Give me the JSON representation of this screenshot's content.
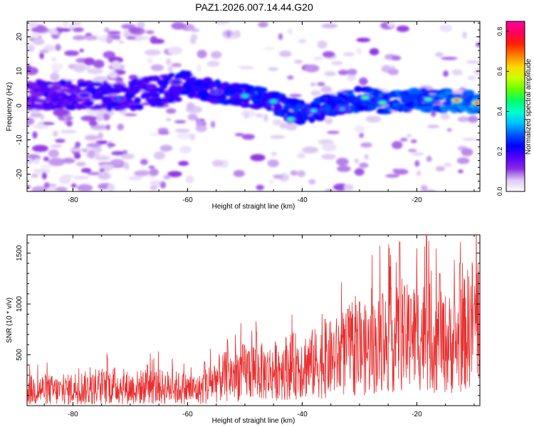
{
  "chart_data": [
    {
      "id": "spectrogram",
      "type": "heatmap",
      "title": "PAZ1.2026.007.14.44.G20",
      "xlabel": "Height of straight line (km)",
      "ylabel": "Frequency (Hz)",
      "xlim": [
        -88,
        -9
      ],
      "ylim": [
        -25,
        24.5
      ],
      "xticks": [
        -80,
        -60,
        -40,
        -20
      ],
      "yticks": [
        20,
        10,
        0,
        -10,
        -20
      ],
      "ridge": [
        [
          -88,
          3
        ],
        [
          -70,
          3
        ],
        [
          -60,
          6
        ],
        [
          -55,
          4
        ],
        [
          -50,
          3
        ],
        [
          -45,
          1
        ],
        [
          -40,
          -2
        ],
        [
          -35,
          0
        ],
        [
          -30,
          2
        ],
        [
          -25,
          1
        ],
        [
          -20,
          1.5
        ],
        [
          -15,
          1.5
        ],
        [
          -9,
          1
        ]
      ],
      "hotspots": [
        {
          "x": -13,
          "y": 1.5,
          "value": 0.82
        },
        {
          "x": -9.5,
          "y": 0.8,
          "value": 0.8
        },
        {
          "x": -18,
          "y": 1.8,
          "value": 0.5
        },
        {
          "x": -26,
          "y": 0.8,
          "value": 0.5
        },
        {
          "x": -29,
          "y": 2.3,
          "value": 0.5
        },
        {
          "x": -42,
          "y": -4,
          "value": 0.48
        },
        {
          "x": -45,
          "y": 1.2,
          "value": 0.45
        },
        {
          "x": -50,
          "y": 2.8,
          "value": 0.45
        },
        {
          "x": -38,
          "y": -1.5,
          "value": 0.4
        },
        {
          "x": -33,
          "y": -1,
          "value": 0.35
        },
        {
          "x": -55,
          "y": 4,
          "value": 0.3
        },
        {
          "x": -62,
          "y": 6.8,
          "value": 0.25
        },
        {
          "x": -72,
          "y": 2,
          "value": 0.3
        },
        {
          "x": -78,
          "y": 3,
          "value": 0.25
        }
      ],
      "colorbar": {
        "label": "Normalized spectral amplitude",
        "range": [
          0,
          0.85
        ],
        "ticks": [
          "0.0",
          "0.2",
          "0.4",
          "0.6",
          "0.8"
        ],
        "colors": [
          "#ffffff",
          "#dcc8f5",
          "#8a2be2",
          "#5500ff",
          "#0000ff",
          "#0055ff",
          "#00bfff",
          "#00ffd0",
          "#00ff66",
          "#66ff00",
          "#c8ff00",
          "#ffd700",
          "#ff8000",
          "#ff2000",
          "#ff0060",
          "#ff00a0"
        ]
      }
    },
    {
      "id": "snr",
      "type": "line",
      "xlabel": "Height of straight line (km)",
      "ylabel": "SNR (10 * v/v)",
      "xlim": [
        -88,
        -9
      ],
      "ylim": [
        0,
        1680
      ],
      "xticks": [
        -80,
        -60,
        -40,
        -20
      ],
      "yticks": [
        500,
        1000,
        1500
      ],
      "color": "#e83030",
      "x": [
        -88,
        -85,
        -82,
        -79,
        -76,
        -73,
        -70,
        -67,
        -64,
        -61,
        -58,
        -55,
        -52,
        -49,
        -46,
        -43,
        -40,
        -37,
        -34,
        -31,
        -28,
        -25,
        -22,
        -19,
        -16,
        -13,
        -10,
        -9
      ],
      "y": [
        150,
        160,
        140,
        180,
        160,
        200,
        170,
        190,
        180,
        170,
        150,
        260,
        300,
        350,
        320,
        380,
        400,
        420,
        480,
        520,
        560,
        640,
        660,
        700,
        620,
        600,
        850,
        900
      ],
      "peaks": [
        [
          -74,
          470
        ],
        [
          -67,
          400
        ],
        [
          -57,
          430
        ],
        [
          -53,
          650
        ],
        [
          -48,
          720
        ],
        [
          -36,
          850
        ],
        [
          -32,
          950
        ],
        [
          -30,
          1020
        ],
        [
          -26,
          1100
        ],
        [
          -23,
          1610
        ],
        [
          -21,
          1050
        ],
        [
          -18.3,
          1670
        ],
        [
          -16,
          1300
        ],
        [
          -12.5,
          1400
        ],
        [
          -10,
          1000
        ]
      ]
    }
  ]
}
